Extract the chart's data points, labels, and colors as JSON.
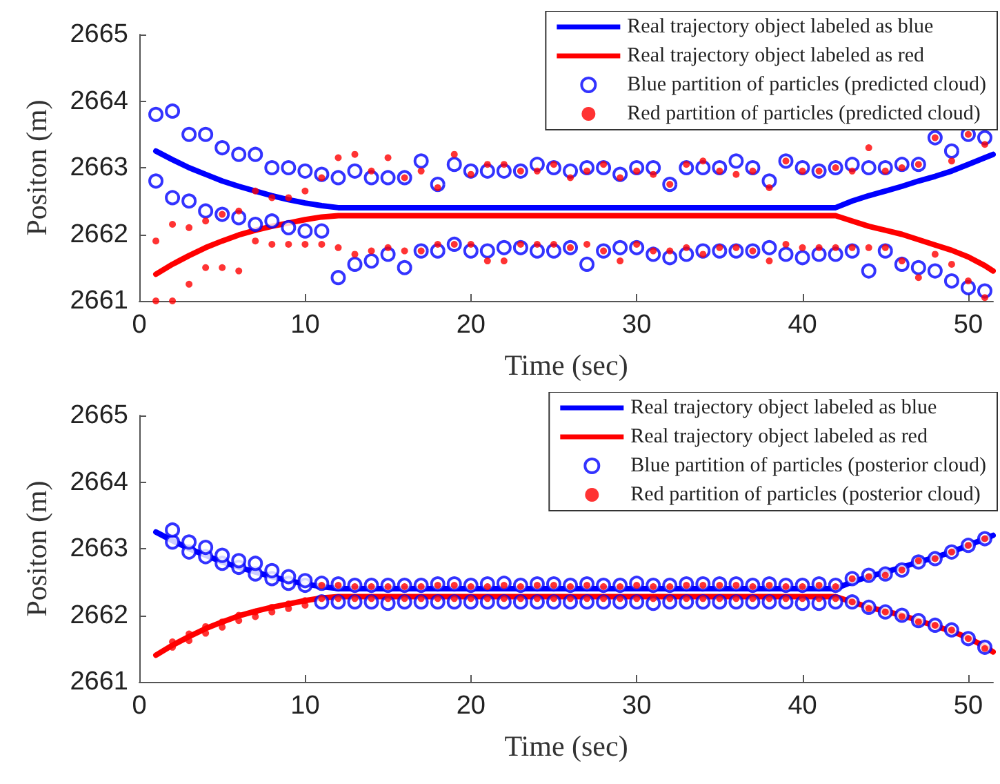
{
  "chart_data": [
    {
      "type": "line",
      "xlabel": "Time (sec)",
      "ylabel": "Positon (m)",
      "xlim": [
        0,
        51.5
      ],
      "xticks": [
        0,
        10,
        20,
        30,
        40,
        50
      ],
      "ylim": [
        2661,
        2665
      ],
      "yticks": [
        2661,
        2662,
        2663,
        2664,
        2665
      ],
      "grid": false,
      "legend": "top right",
      "series": [
        {
          "name": "Real trajectory object labeled as blue",
          "type": "line",
          "color": "#0000ff",
          "marker": "none",
          "line_style": "solid",
          "x": [
            1,
            2,
            3,
            4,
            5,
            6,
            7,
            8,
            9,
            10,
            11,
            12,
            20,
            30,
            42,
            43,
            44,
            45,
            46,
            47,
            48,
            49,
            50,
            51,
            51.5
          ],
          "values": [
            2663.25,
            2663.12,
            2663.0,
            2662.9,
            2662.8,
            2662.72,
            2662.65,
            2662.58,
            2662.52,
            2662.47,
            2662.43,
            2662.4,
            2662.4,
            2662.4,
            2662.4,
            2662.5,
            2662.58,
            2662.65,
            2662.72,
            2662.8,
            2662.87,
            2662.95,
            2663.05,
            2663.15,
            2663.2
          ]
        },
        {
          "name": "Real trajectory object labeled as red",
          "type": "line",
          "color": "#ff0000",
          "marker": "none",
          "line_style": "solid",
          "x": [
            1,
            2,
            3,
            4,
            5,
            6,
            7,
            8,
            9,
            10,
            11,
            12,
            20,
            30,
            42,
            43,
            44,
            45,
            46,
            47,
            48,
            49,
            50,
            51,
            51.5
          ],
          "values": [
            2661.4,
            2661.55,
            2661.68,
            2661.8,
            2661.9,
            2661.99,
            2662.06,
            2662.12,
            2662.17,
            2662.22,
            2662.26,
            2662.28,
            2662.28,
            2662.28,
            2662.28,
            2662.2,
            2662.12,
            2662.06,
            2662.0,
            2661.92,
            2661.84,
            2661.76,
            2661.66,
            2661.53,
            2661.45
          ]
        },
        {
          "name": "Blue partition of particles (predicted cloud)",
          "type": "scatter",
          "color": "#0000ff",
          "marker": "circle",
          "x": [
            1,
            1,
            2,
            2,
            3,
            3,
            4,
            4,
            5,
            5,
            6,
            6,
            7,
            7,
            8,
            8,
            9,
            9,
            10,
            10,
            11,
            11,
            12,
            12,
            13,
            13,
            14,
            14,
            15,
            15,
            16,
            16,
            17,
            17,
            18,
            18,
            19,
            19,
            20,
            20,
            21,
            21,
            22,
            22,
            23,
            23,
            24,
            24,
            25,
            25,
            26,
            26,
            27,
            27,
            28,
            28,
            29,
            29,
            30,
            30,
            31,
            31,
            32,
            32,
            33,
            33,
            34,
            34,
            35,
            35,
            36,
            36,
            37,
            37,
            38,
            38,
            39,
            39,
            40,
            40,
            41,
            41,
            42,
            42,
            43,
            43,
            44,
            44,
            45,
            45,
            46,
            46,
            47,
            47,
            48,
            48,
            49,
            49,
            50,
            50,
            51,
            51
          ],
          "values": [
            2662.8,
            2663.8,
            2662.55,
            2663.85,
            2662.5,
            2663.5,
            2662.35,
            2663.5,
            2662.3,
            2663.3,
            2662.25,
            2663.2,
            2662.15,
            2663.2,
            2662.2,
            2663.0,
            2662.1,
            2663.0,
            2662.05,
            2662.95,
            2662.05,
            2662.9,
            2661.35,
            2662.85,
            2661.55,
            2662.95,
            2661.6,
            2662.85,
            2661.7,
            2662.85,
            2661.5,
            2662.85,
            2661.75,
            2663.1,
            2661.75,
            2662.75,
            2661.85,
            2663.05,
            2661.75,
            2662.95,
            2661.75,
            2662.95,
            2661.8,
            2662.95,
            2661.8,
            2662.95,
            2661.75,
            2663.05,
            2661.75,
            2663.0,
            2661.8,
            2662.95,
            2661.55,
            2663.0,
            2661.75,
            2663.0,
            2661.8,
            2662.9,
            2661.8,
            2663.0,
            2661.7,
            2663.0,
            2661.65,
            2662.75,
            2661.7,
            2663.0,
            2661.75,
            2663.0,
            2661.75,
            2663.0,
            2661.75,
            2663.1,
            2661.75,
            2663.0,
            2661.8,
            2662.8,
            2661.7,
            2663.1,
            2661.65,
            2663.0,
            2661.7,
            2662.95,
            2661.7,
            2663.0,
            2661.75,
            2663.05,
            2661.45,
            2663.0,
            2661.75,
            2663.0,
            2661.55,
            2663.05,
            2661.5,
            2663.05,
            2661.45,
            2663.45,
            2661.3,
            2663.25,
            2661.2,
            2663.5,
            2661.15,
            2663.45
          ]
        },
        {
          "name": "Red partition of particles (predicted cloud)",
          "type": "scatter",
          "color": "#ff0000",
          "marker": "circle",
          "x": [
            1,
            1,
            2,
            2,
            3,
            3,
            4,
            4,
            5,
            5,
            6,
            6,
            7,
            7,
            8,
            8,
            9,
            9,
            10,
            10,
            11,
            11,
            12,
            12,
            13,
            13,
            14,
            14,
            15,
            15,
            16,
            16,
            17,
            17,
            18,
            18,
            19,
            19,
            20,
            20,
            21,
            21,
            22,
            22,
            23,
            23,
            24,
            24,
            25,
            25,
            26,
            26,
            27,
            27,
            28,
            28,
            29,
            29,
            30,
            30,
            31,
            31,
            32,
            32,
            33,
            33,
            34,
            34,
            35,
            35,
            36,
            36,
            37,
            37,
            38,
            38,
            39,
            39,
            40,
            40,
            41,
            41,
            42,
            42,
            43,
            43,
            44,
            44,
            45,
            45,
            46,
            46,
            47,
            47,
            48,
            48,
            49,
            49,
            50,
            50,
            51,
            51
          ],
          "values": [
            2661.0,
            2661.9,
            2661.0,
            2662.15,
            2661.25,
            2662.1,
            2661.5,
            2662.2,
            2661.5,
            2662.3,
            2661.45,
            2662.35,
            2661.9,
            2662.65,
            2661.85,
            2662.55,
            2661.85,
            2662.55,
            2661.85,
            2662.65,
            2661.85,
            2662.85,
            2661.8,
            2663.15,
            2661.7,
            2663.2,
            2661.75,
            2662.95,
            2661.8,
            2663.15,
            2661.75,
            2662.85,
            2661.75,
            2662.95,
            2661.85,
            2662.7,
            2661.85,
            2663.2,
            2661.85,
            2662.9,
            2661.6,
            2663.05,
            2661.6,
            2663.05,
            2661.85,
            2662.95,
            2661.85,
            2662.95,
            2661.85,
            2663.05,
            2661.8,
            2662.85,
            2661.85,
            2662.95,
            2661.75,
            2663.05,
            2661.6,
            2662.85,
            2661.85,
            2662.95,
            2661.75,
            2662.9,
            2661.75,
            2662.75,
            2661.8,
            2663.05,
            2661.7,
            2663.1,
            2661.8,
            2662.95,
            2661.8,
            2662.9,
            2661.75,
            2662.95,
            2661.6,
            2662.7,
            2661.85,
            2663.1,
            2661.8,
            2662.95,
            2661.8,
            2662.95,
            2661.8,
            2663.0,
            2661.8,
            2662.95,
            2661.8,
            2663.3,
            2661.8,
            2662.95,
            2661.6,
            2663.0,
            2661.35,
            2663.05,
            2661.7,
            2663.45,
            2661.55,
            2663.1,
            2661.3,
            2663.5,
            2661.05,
            2663.35
          ]
        }
      ]
    },
    {
      "type": "line",
      "xlabel": "Time (sec)",
      "ylabel": "Positon (m)",
      "xlim": [
        0,
        51.5
      ],
      "xticks": [
        0,
        10,
        20,
        30,
        40,
        50
      ],
      "ylim": [
        2661,
        2665
      ],
      "yticks": [
        2661,
        2662,
        2663,
        2664,
        2665
      ],
      "grid": false,
      "legend": "top right",
      "series": [
        {
          "name": "Real trajectory object labeled as blue",
          "type": "line",
          "color": "#0000ff",
          "marker": "none",
          "line_style": "solid",
          "x": [
            1,
            2,
            3,
            4,
            5,
            6,
            7,
            8,
            9,
            10,
            11,
            12,
            20,
            30,
            42,
            43,
            44,
            45,
            46,
            47,
            48,
            49,
            50,
            51,
            51.5
          ],
          "values": [
            2663.25,
            2663.12,
            2663.0,
            2662.9,
            2662.8,
            2662.72,
            2662.65,
            2662.58,
            2662.52,
            2662.47,
            2662.43,
            2662.4,
            2662.4,
            2662.4,
            2662.4,
            2662.5,
            2662.58,
            2662.65,
            2662.72,
            2662.8,
            2662.87,
            2662.95,
            2663.05,
            2663.15,
            2663.2
          ]
        },
        {
          "name": "Real trajectory object labeled as red",
          "type": "line",
          "color": "#ff0000",
          "marker": "none",
          "line_style": "solid",
          "x": [
            1,
            2,
            3,
            4,
            5,
            6,
            7,
            8,
            9,
            10,
            11,
            12,
            20,
            30,
            42,
            43,
            44,
            45,
            46,
            47,
            48,
            49,
            50,
            51,
            51.5
          ],
          "values": [
            2661.4,
            2661.55,
            2661.68,
            2661.8,
            2661.9,
            2661.99,
            2662.06,
            2662.12,
            2662.17,
            2662.22,
            2662.26,
            2662.28,
            2662.28,
            2662.28,
            2662.28,
            2662.2,
            2662.12,
            2662.06,
            2662.0,
            2661.92,
            2661.84,
            2661.76,
            2661.66,
            2661.53,
            2661.45
          ]
        },
        {
          "name": "Blue partition of particles (posterior cloud)",
          "type": "scatter",
          "color": "#0000ff",
          "marker": "circle",
          "x": [
            2,
            2,
            3,
            3,
            4,
            4,
            5,
            5,
            6,
            6,
            7,
            7,
            8,
            8,
            9,
            9,
            10,
            10,
            11,
            11,
            12,
            12,
            13,
            13,
            14,
            14,
            15,
            15,
            16,
            16,
            17,
            17,
            18,
            18,
            19,
            19,
            20,
            20,
            21,
            21,
            22,
            22,
            23,
            23,
            24,
            24,
            25,
            25,
            26,
            26,
            27,
            27,
            28,
            28,
            29,
            29,
            30,
            30,
            31,
            31,
            32,
            32,
            33,
            33,
            34,
            34,
            35,
            35,
            36,
            36,
            37,
            37,
            38,
            38,
            39,
            39,
            40,
            40,
            41,
            41,
            42,
            42,
            43,
            43,
            44,
            44,
            45,
            45,
            46,
            46,
            47,
            47,
            48,
            48,
            49,
            49,
            50,
            50,
            51,
            51
          ],
          "values": [
            2663.1,
            2663.28,
            2662.95,
            2663.1,
            2662.88,
            2663.02,
            2662.78,
            2662.9,
            2662.72,
            2662.82,
            2662.62,
            2662.78,
            2662.55,
            2662.67,
            2662.48,
            2662.58,
            2662.45,
            2662.52,
            2662.2,
            2662.48,
            2662.2,
            2662.47,
            2662.2,
            2662.45,
            2662.2,
            2662.45,
            2662.18,
            2662.45,
            2662.2,
            2662.45,
            2662.2,
            2662.45,
            2662.2,
            2662.47,
            2662.2,
            2662.47,
            2662.2,
            2662.45,
            2662.2,
            2662.47,
            2662.2,
            2662.48,
            2662.2,
            2662.45,
            2662.2,
            2662.47,
            2662.2,
            2662.47,
            2662.2,
            2662.45,
            2662.2,
            2662.47,
            2662.2,
            2662.45,
            2662.2,
            2662.45,
            2662.2,
            2662.48,
            2662.18,
            2662.45,
            2662.2,
            2662.45,
            2662.2,
            2662.47,
            2662.2,
            2662.47,
            2662.2,
            2662.47,
            2662.2,
            2662.47,
            2662.2,
            2662.45,
            2662.2,
            2662.47,
            2662.2,
            2662.45,
            2662.18,
            2662.45,
            2662.18,
            2662.47,
            2662.2,
            2662.45,
            2662.2,
            2662.55,
            2662.12,
            2662.6,
            2662.05,
            2662.62,
            2662.0,
            2662.68,
            2661.92,
            2662.8,
            2661.85,
            2662.85,
            2661.78,
            2662.95,
            2661.65,
            2663.05,
            2661.52,
            2663.15
          ]
        },
        {
          "name": "Red partition of particles (posterior cloud)",
          "type": "scatter",
          "color": "#ff0000",
          "marker": "circle",
          "x": [
            2,
            2,
            3,
            3,
            4,
            4,
            5,
            5,
            6,
            6,
            7,
            7,
            8,
            8,
            9,
            9,
            10,
            10,
            11,
            11,
            12,
            12,
            13,
            13,
            14,
            14,
            15,
            15,
            16,
            16,
            17,
            17,
            18,
            18,
            19,
            19,
            20,
            20,
            21,
            21,
            22,
            22,
            23,
            23,
            24,
            24,
            25,
            25,
            26,
            26,
            27,
            27,
            28,
            28,
            29,
            29,
            30,
            30,
            31,
            31,
            32,
            32,
            33,
            33,
            34,
            34,
            35,
            35,
            36,
            36,
            37,
            37,
            38,
            38,
            39,
            39,
            40,
            40,
            41,
            41,
            42,
            42,
            43,
            43,
            44,
            44,
            45,
            45,
            46,
            46,
            47,
            47,
            48,
            48,
            49,
            49,
            50,
            50,
            51,
            51
          ],
          "values": [
            2661.52,
            2661.6,
            2661.62,
            2661.72,
            2661.73,
            2661.83,
            2661.82,
            2661.9,
            2661.92,
            2662.0,
            2661.98,
            2662.05,
            2662.05,
            2662.12,
            2662.1,
            2662.17,
            2662.15,
            2662.22,
            2662.25,
            2662.45,
            2662.25,
            2662.45,
            2662.25,
            2662.43,
            2662.25,
            2662.43,
            2662.25,
            2662.43,
            2662.25,
            2662.43,
            2662.25,
            2662.43,
            2662.25,
            2662.45,
            2662.25,
            2662.45,
            2662.25,
            2662.43,
            2662.25,
            2662.43,
            2662.25,
            2662.45,
            2662.25,
            2662.43,
            2662.25,
            2662.45,
            2662.25,
            2662.45,
            2662.25,
            2662.43,
            2662.25,
            2662.45,
            2662.25,
            2662.43,
            2662.25,
            2662.43,
            2662.25,
            2662.45,
            2662.25,
            2662.43,
            2662.25,
            2662.43,
            2662.25,
            2662.45,
            2662.25,
            2662.45,
            2662.25,
            2662.45,
            2662.25,
            2662.45,
            2662.25,
            2662.43,
            2662.25,
            2662.45,
            2662.25,
            2662.43,
            2662.25,
            2662.43,
            2662.25,
            2662.45,
            2662.25,
            2662.43,
            2662.2,
            2662.55,
            2662.1,
            2662.58,
            2662.05,
            2662.6,
            2661.98,
            2662.68,
            2661.9,
            2662.82,
            2661.85,
            2662.85,
            2661.78,
            2662.95,
            2661.65,
            2663.05,
            2661.5,
            2663.15
          ]
        }
      ]
    }
  ]
}
